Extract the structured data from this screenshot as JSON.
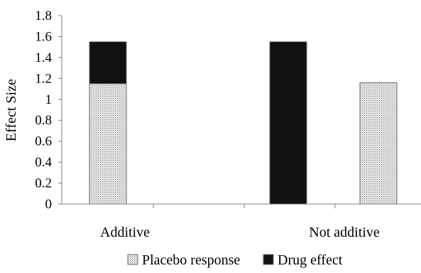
{
  "chart_data": {
    "type": "bar",
    "stacked": true,
    "title": "",
    "xlabel": "",
    "ylabel": "Effect Size",
    "ylim": [
      0,
      1.8
    ],
    "yticks": [
      "0",
      "0.2",
      "0.4",
      "0.6",
      "0.8",
      "1",
      "1.2",
      "1.4",
      "1.6",
      "1.8"
    ],
    "grid": false,
    "legend_position": "bottom",
    "groups": [
      "Additive",
      "Not additive"
    ],
    "series": [
      {
        "name": "Placebo response",
        "color": "#d8d8d8",
        "pattern": "dotted-gray",
        "points": [
          {
            "group": "Additive",
            "base": 0,
            "value": 1.15
          },
          {
            "group": "Not additive",
            "base": 0,
            "value": 1.16
          }
        ]
      },
      {
        "name": "Drug effect",
        "color": "#111111",
        "pattern": "solid-black",
        "points": [
          {
            "group": "Additive",
            "base": 1.15,
            "value": 0.4
          },
          {
            "group": "Not additive",
            "base": 0,
            "value": 1.55
          }
        ]
      }
    ]
  }
}
